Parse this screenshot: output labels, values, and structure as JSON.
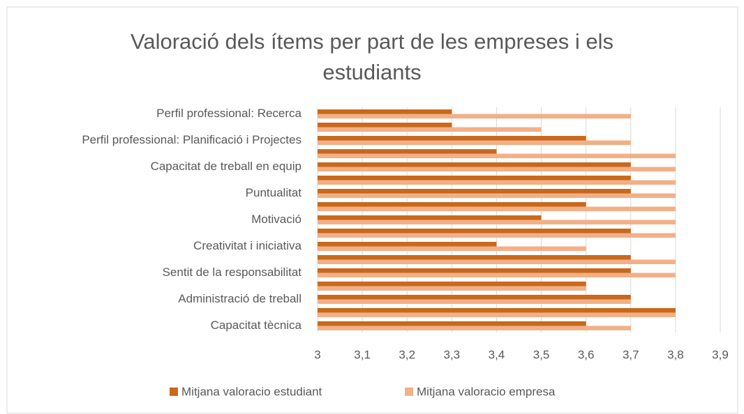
{
  "chart_data": {
    "type": "bar",
    "orientation": "horizontal",
    "title": "Valoració dels ítems per part de les empreses i els estudiants",
    "categories": [
      "Capacitat tècnica",
      null,
      "Administració de treball",
      null,
      "Sentit de la responsabilitat",
      null,
      "Creativitat i iniciativa",
      null,
      "Motivació",
      null,
      "Puntualitat",
      null,
      "Capacitat de treball en equip",
      null,
      "Perfil professional: Planificació i Projectes",
      null,
      "Perfil professional: Recerca"
    ],
    "series": [
      {
        "name": "Mitjana valoracio estudiant",
        "color": "#c8691c",
        "values": [
          3.6,
          3.8,
          3.7,
          3.6,
          3.7,
          3.7,
          3.4,
          3.7,
          3.5,
          3.6,
          3.7,
          3.7,
          3.7,
          3.4,
          3.6,
          3.3,
          3.3
        ]
      },
      {
        "name": "Mitjana valoracio empresa",
        "color": "#f2b087",
        "values": [
          3.7,
          3.8,
          3.7,
          3.6,
          3.8,
          3.8,
          3.6,
          3.8,
          3.8,
          3.8,
          3.8,
          3.8,
          3.8,
          3.8,
          3.7,
          3.5,
          3.7
        ]
      }
    ],
    "xlim": [
      3,
      3.9
    ],
    "xticks": [
      3,
      {
        "value": 3.1,
        "label": "3,1"
      },
      {
        "value": 3.2,
        "label": "3,2"
      },
      {
        "value": 3.3,
        "label": "3,3"
      },
      {
        "value": 3.4,
        "label": "3,4"
      },
      {
        "value": 3.5,
        "label": "3,5"
      },
      {
        "value": 3.6,
        "label": "3,6"
      },
      {
        "value": 3.7,
        "label": "3,7"
      },
      {
        "value": 3.8,
        "label": "3,8"
      },
      {
        "value": 3.9,
        "label": "3,9"
      }
    ],
    "grid": true,
    "legend": "bottom"
  }
}
